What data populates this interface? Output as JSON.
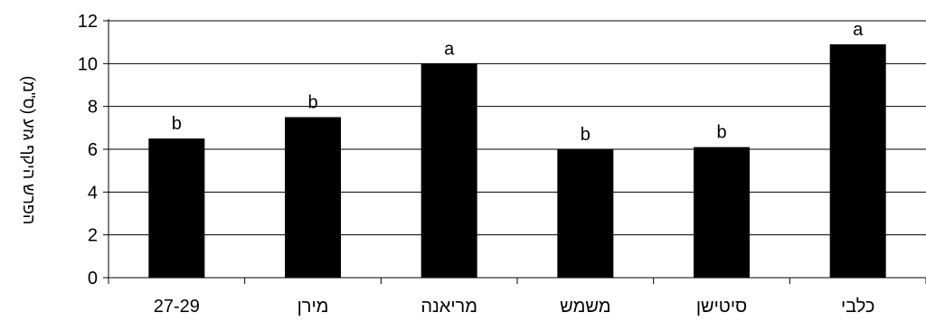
{
  "chart_data": {
    "type": "bar",
    "title": "",
    "xlabel": "",
    "ylabel": "הפרש היקף גזע (ס\"מ)",
    "ylim": [
      0,
      12
    ],
    "yticks": [
      0,
      2,
      4,
      6,
      8,
      10,
      12
    ],
    "grid": true,
    "legend": "none",
    "categories": [
      "27-29",
      "מירן",
      "מריאנה",
      "משמש",
      "סיטישן",
      "כלבי"
    ],
    "values": [
      6.5,
      7.5,
      10.0,
      6.0,
      6.1,
      10.9
    ],
    "significance_labels": [
      "b",
      "b",
      "a",
      "b",
      "b",
      "a"
    ],
    "bar_color": "#000000",
    "grid_color": "#000000"
  }
}
